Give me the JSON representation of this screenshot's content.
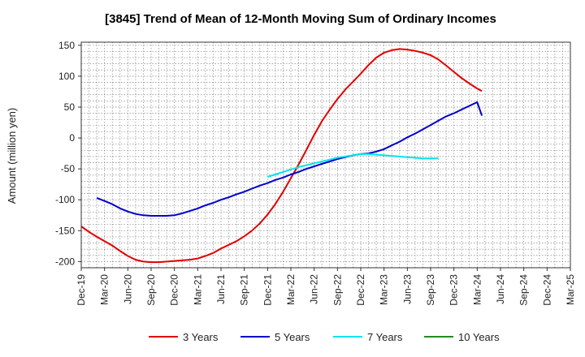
{
  "chart_data": {
    "type": "line",
    "title": "[3845]  Trend of Mean of 12-Month Moving Sum of Ordinary Incomes",
    "xlabel": "",
    "ylabel": "Amount (million yen)",
    "ylim": [
      -210,
      155
    ],
    "yticks": [
      150,
      100,
      50,
      0,
      -50,
      -100,
      -150,
      -200
    ],
    "x_tick_labels": [
      "Dec-19",
      "Mar-20",
      "Jun-20",
      "Sep-20",
      "Dec-20",
      "Mar-21",
      "Jun-21",
      "Sep-21",
      "Dec-21",
      "Mar-22",
      "Jun-22",
      "Sep-22",
      "Dec-22",
      "Mar-23",
      "Jun-23",
      "Sep-23",
      "Dec-23",
      "Mar-24",
      "Jun-24",
      "Sep-24",
      "Dec-24",
      "Mar-25"
    ],
    "grid": true,
    "legend_position": "bottom",
    "series": [
      {
        "name": "3 Years",
        "color": "#e00000",
        "points": [
          [
            0,
            -143
          ],
          [
            0.33,
            -152
          ],
          [
            0.67,
            -160
          ],
          [
            1,
            -167
          ],
          [
            1.33,
            -174
          ],
          [
            1.67,
            -183
          ],
          [
            2,
            -191
          ],
          [
            2.33,
            -197
          ],
          [
            2.67,
            -200
          ],
          [
            3,
            -201
          ],
          [
            3.33,
            -201
          ],
          [
            3.67,
            -200
          ],
          [
            4,
            -199
          ],
          [
            4.33,
            -198
          ],
          [
            4.67,
            -197
          ],
          [
            5,
            -195
          ],
          [
            5.33,
            -191
          ],
          [
            5.67,
            -186
          ],
          [
            6,
            -179
          ],
          [
            6.33,
            -173
          ],
          [
            6.67,
            -167
          ],
          [
            7,
            -159
          ],
          [
            7.33,
            -150
          ],
          [
            7.67,
            -138
          ],
          [
            8,
            -124
          ],
          [
            8.33,
            -107
          ],
          [
            8.67,
            -87
          ],
          [
            9,
            -65
          ],
          [
            9.33,
            -43
          ],
          [
            9.67,
            -19
          ],
          [
            10,
            5
          ],
          [
            10.33,
            27
          ],
          [
            10.67,
            46
          ],
          [
            11,
            63
          ],
          [
            11.33,
            78
          ],
          [
            11.67,
            91
          ],
          [
            12,
            104
          ],
          [
            12.33,
            118
          ],
          [
            12.67,
            130
          ],
          [
            13,
            138
          ],
          [
            13.33,
            142
          ],
          [
            13.67,
            144
          ],
          [
            14,
            143
          ],
          [
            14.33,
            141
          ],
          [
            14.67,
            138
          ],
          [
            15,
            134
          ],
          [
            15.33,
            127
          ],
          [
            15.67,
            117
          ],
          [
            16,
            107
          ],
          [
            16.33,
            97
          ],
          [
            16.67,
            88
          ],
          [
            17,
            80
          ],
          [
            17.2,
            76
          ]
        ]
      },
      {
        "name": "5 Years",
        "color": "#0000cc",
        "points": [
          [
            0.67,
            -97
          ],
          [
            1,
            -102
          ],
          [
            1.33,
            -107
          ],
          [
            1.67,
            -114
          ],
          [
            2,
            -119
          ],
          [
            2.33,
            -123
          ],
          [
            2.67,
            -125
          ],
          [
            3,
            -126
          ],
          [
            3.33,
            -126
          ],
          [
            3.67,
            -126
          ],
          [
            4,
            -125
          ],
          [
            4.33,
            -122
          ],
          [
            4.67,
            -118
          ],
          [
            5,
            -114
          ],
          [
            5.33,
            -109
          ],
          [
            5.67,
            -105
          ],
          [
            6,
            -100
          ],
          [
            6.33,
            -96
          ],
          [
            6.67,
            -91
          ],
          [
            7,
            -87
          ],
          [
            7.33,
            -82
          ],
          [
            7.67,
            -77
          ],
          [
            8,
            -73
          ],
          [
            8.33,
            -68
          ],
          [
            8.67,
            -64
          ],
          [
            9,
            -59
          ],
          [
            9.33,
            -55
          ],
          [
            9.67,
            -50
          ],
          [
            10,
            -46
          ],
          [
            10.33,
            -42
          ],
          [
            10.67,
            -38
          ],
          [
            11,
            -34
          ],
          [
            11.33,
            -31
          ],
          [
            11.67,
            -28
          ],
          [
            12,
            -26
          ],
          [
            12.33,
            -25
          ],
          [
            12.67,
            -22
          ],
          [
            13,
            -18
          ],
          [
            13.33,
            -12
          ],
          [
            13.67,
            -6
          ],
          [
            14,
            1
          ],
          [
            14.33,
            7
          ],
          [
            14.67,
            14
          ],
          [
            15,
            21
          ],
          [
            15.33,
            28
          ],
          [
            15.67,
            35
          ],
          [
            16,
            40
          ],
          [
            16.33,
            46
          ],
          [
            16.67,
            52
          ],
          [
            17,
            58
          ],
          [
            17.2,
            36
          ]
        ]
      },
      {
        "name": "7 Years",
        "color": "#00e5ee",
        "points": [
          [
            8,
            -63
          ],
          [
            8.33,
            -59
          ],
          [
            8.67,
            -55
          ],
          [
            9,
            -51
          ],
          [
            9.33,
            -47
          ],
          [
            9.67,
            -44
          ],
          [
            10,
            -41
          ],
          [
            10.33,
            -38
          ],
          [
            10.67,
            -35
          ],
          [
            11,
            -32
          ],
          [
            11.33,
            -30
          ],
          [
            11.67,
            -28
          ],
          [
            12,
            -26
          ],
          [
            12.33,
            -26
          ],
          [
            12.67,
            -27
          ],
          [
            13,
            -28
          ],
          [
            13.33,
            -29
          ],
          [
            13.67,
            -30
          ],
          [
            14,
            -31
          ],
          [
            14.33,
            -32
          ],
          [
            14.67,
            -33
          ],
          [
            15,
            -33
          ],
          [
            15.33,
            -33
          ]
        ]
      },
      {
        "name": "10 Years",
        "color": "#228b22",
        "points": []
      }
    ]
  }
}
